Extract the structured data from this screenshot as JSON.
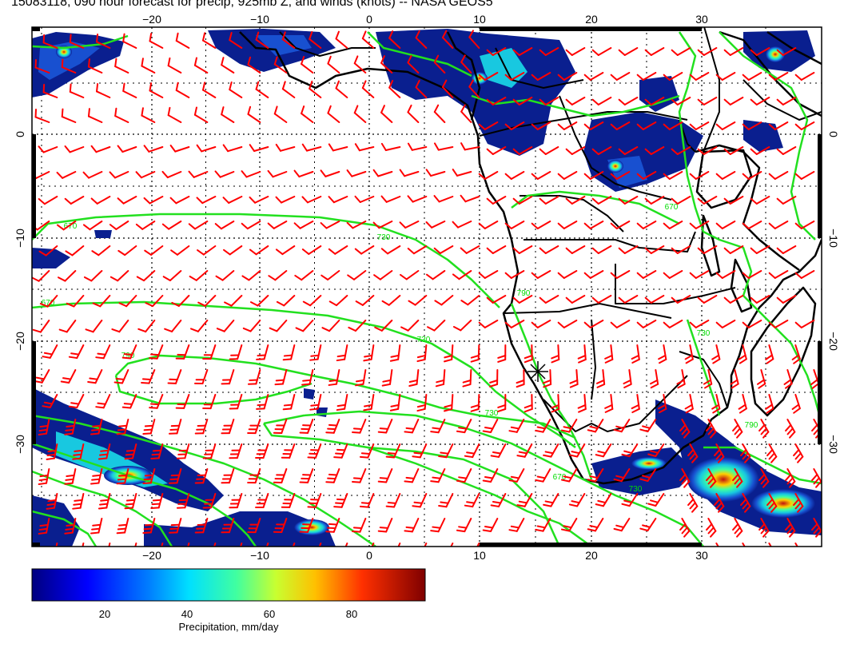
{
  "title": "15083118, 090 hour forecast for precip, 925mb Z, and winds (knots) -- NASA GEOS5",
  "map": {
    "lon_ticks": [
      "−20",
      "−10",
      "0",
      "10",
      "20",
      "30"
    ],
    "lat_ticks": [
      "0",
      "−10",
      "−20",
      "−30"
    ],
    "contour_labels": [
      "670",
      "730",
      "670",
      "730",
      "790",
      "730",
      "790",
      "670",
      "730",
      "670",
      "790",
      "730"
    ]
  },
  "colorbar": {
    "ticks": [
      "20",
      "40",
      "60",
      "80"
    ],
    "label": "Precipitation, mm/day"
  },
  "colors": {
    "contour": "#22e01f",
    "barb": "#ff0000",
    "coast": "#000000",
    "precip_light": "#0a1f8f",
    "precip_mid": "#18c8e0",
    "precip_high": "#c01010"
  }
}
